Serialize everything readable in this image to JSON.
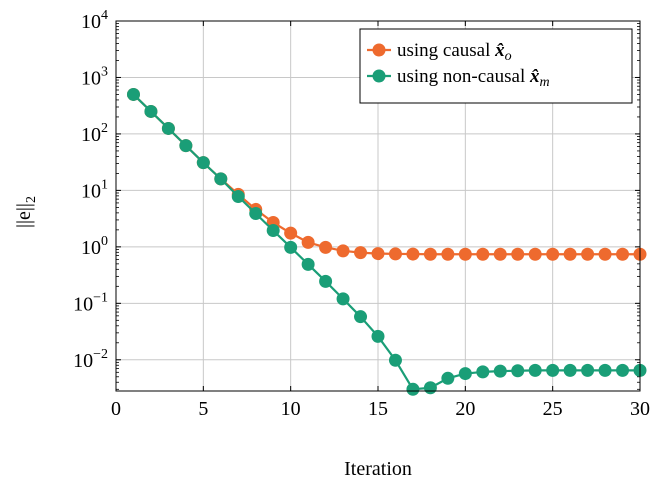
{
  "chart_data": {
    "type": "line",
    "title": "",
    "xlabel": "Iteration",
    "ylabel": "||e||",
    "ylabel_sub": "2",
    "xlim": [
      0,
      30
    ],
    "ylim": [
      0.0028,
      10000
    ],
    "yscale": "log",
    "grid": true,
    "legend_position": "top-right",
    "x_ticks": [
      {
        "value": 0,
        "label": "0"
      },
      {
        "value": 5,
        "label": "5"
      },
      {
        "value": 10,
        "label": "10"
      },
      {
        "value": 15,
        "label": "15"
      },
      {
        "value": 20,
        "label": "20"
      },
      {
        "value": 25,
        "label": "25"
      },
      {
        "value": 30,
        "label": "30"
      }
    ],
    "y_ticks": [
      {
        "value": 0.01,
        "base": "10",
        "exp": "−2"
      },
      {
        "value": 0.1,
        "base": "10",
        "exp": "−1"
      },
      {
        "value": 1,
        "base": "10",
        "exp": "0"
      },
      {
        "value": 10,
        "base": "10",
        "exp": "1"
      },
      {
        "value": 100,
        "base": "10",
        "exp": "2"
      },
      {
        "value": 1000,
        "base": "10",
        "exp": "3"
      },
      {
        "value": 10000,
        "base": "10",
        "exp": "4"
      }
    ],
    "x": [
      1,
      2,
      3,
      4,
      5,
      6,
      7,
      8,
      9,
      10,
      11,
      12,
      13,
      14,
      15,
      16,
      17,
      18,
      19,
      20,
      21,
      22,
      23,
      24,
      25,
      26,
      27,
      28,
      29,
      30
    ],
    "series": [
      {
        "name": "using causal x̂o",
        "legend_text": "using causal ",
        "legend_symbol": "x̂",
        "legend_subscript": "o",
        "color": "#ee6a2e",
        "values": [
          500,
          250,
          125,
          62,
          31,
          16,
          8.5,
          4.6,
          2.7,
          1.75,
          1.2,
          0.98,
          0.85,
          0.79,
          0.76,
          0.75,
          0.745,
          0.74,
          0.74,
          0.74,
          0.74,
          0.74,
          0.74,
          0.74,
          0.74,
          0.74,
          0.74,
          0.74,
          0.74,
          0.74
        ]
      },
      {
        "name": "using non-causal x̂m",
        "legend_text": "using non-causal ",
        "legend_symbol": "x̂",
        "legend_subscript": "m",
        "color": "#1a9e77",
        "values": [
          500,
          250,
          125,
          62,
          31,
          16,
          7.8,
          3.9,
          1.95,
          0.98,
          0.49,
          0.245,
          0.12,
          0.058,
          0.026,
          0.0098,
          0.003,
          0.0032,
          0.0047,
          0.0057,
          0.0061,
          0.0063,
          0.0064,
          0.0065,
          0.0065,
          0.0065,
          0.0065,
          0.0065,
          0.0065,
          0.0065
        ]
      }
    ]
  }
}
